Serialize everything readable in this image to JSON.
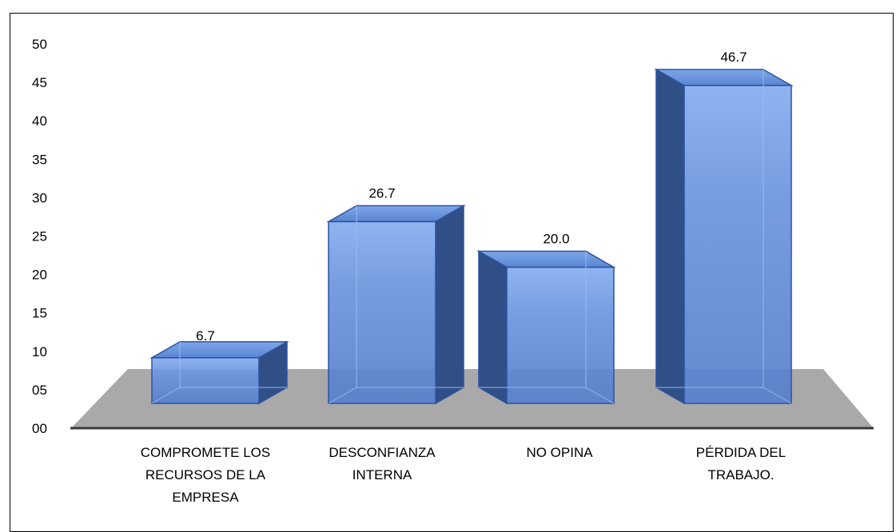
{
  "chart_data": {
    "type": "bar",
    "categories": [
      [
        "COMPROMETE LOS",
        "RECURSOS DE LA",
        "EMPRESA"
      ],
      [
        "DESCONFIANZA",
        "INTERNA"
      ],
      [
        "NO OPINA"
      ],
      [
        "PÉRDIDA DEL",
        "TRABAJO."
      ]
    ],
    "values": [
      6.7,
      26.7,
      20.0,
      46.7
    ],
    "value_labels": [
      "6.7",
      "26.7",
      "20.0",
      "46.7"
    ],
    "ylim": [
      0,
      50
    ],
    "y_ticks": [
      "00",
      "05",
      "10",
      "15",
      "20",
      "25",
      "30",
      "35",
      "40",
      "45",
      "50"
    ],
    "grid": false,
    "legend": "none",
    "colors": {
      "bar_front": "#5b87d4",
      "bar_front_light": "#7ea7ea",
      "bar_top": "#4f7bc4",
      "bar_side": "#2f4f86",
      "bar_edge": "#2c52a0",
      "floor": "#a9a9a9",
      "axis": "#3a3a3a"
    }
  }
}
